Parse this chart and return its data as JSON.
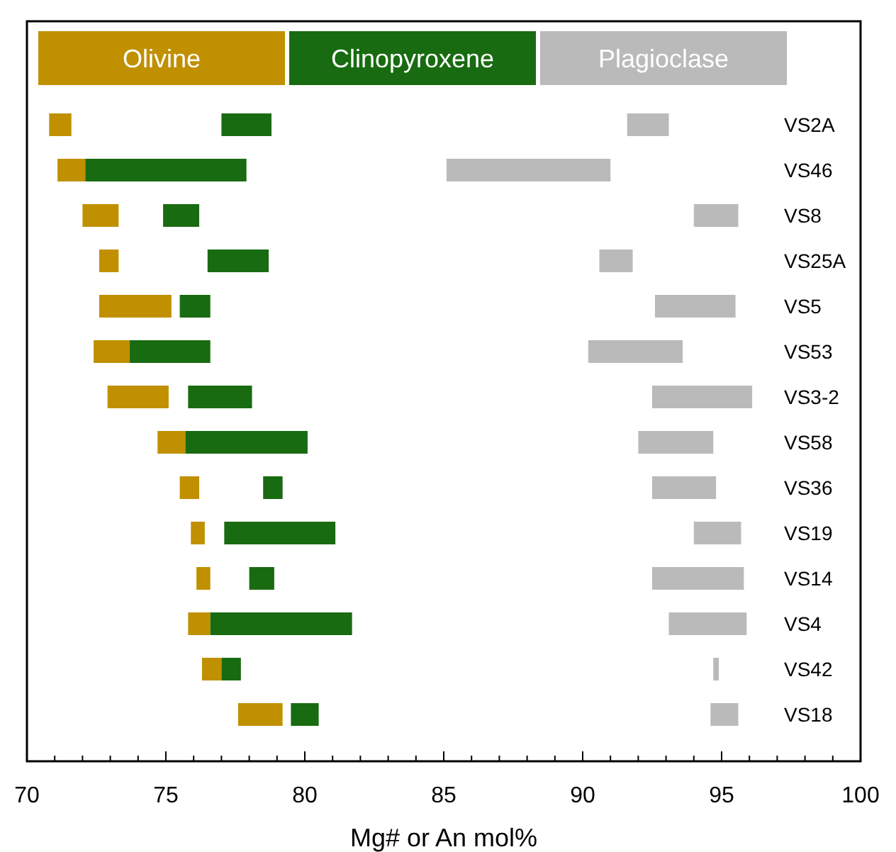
{
  "chart_data": {
    "type": "bar",
    "orientation": "horizontal",
    "xlabel": "Mg# or An mol%",
    "categories": [
      "VS2A",
      "VS46",
      "VS8",
      "VS25A",
      "VS5",
      "VS53",
      "VS3-2",
      "VS58",
      "VS36",
      "VS19",
      "VS14",
      "VS4",
      "VS42",
      "VS18"
    ],
    "series": [
      {
        "name": "Olivine",
        "color": "#c09000",
        "base": [
          70.8,
          71.1,
          72.0,
          72.6,
          72.6,
          72.4,
          72.9,
          74.7,
          75.5,
          75.9,
          76.1,
          75.8,
          76.3,
          77.6
        ],
        "values": [
          0.8,
          1.0,
          1.3,
          0.7,
          2.6,
          1.3,
          2.2,
          1.0,
          0.7,
          0.5,
          0.5,
          0.8,
          0.7,
          1.6
        ]
      },
      {
        "name": "Clinopyroxene",
        "color": "#186b10",
        "base": [
          77.0,
          72.1,
          74.9,
          76.5,
          75.5,
          73.7,
          75.8,
          75.7,
          78.5,
          77.1,
          78.0,
          76.6,
          77.0,
          79.5
        ],
        "values": [
          1.8,
          5.8,
          1.3,
          2.2,
          1.1,
          2.9,
          2.3,
          4.4,
          0.7,
          4.0,
          0.9,
          5.1,
          0.7,
          1.0
        ]
      },
      {
        "name": "Plagioclase",
        "color": "#bababa",
        "base": [
          91.6,
          85.1,
          94.0,
          90.6,
          92.6,
          90.2,
          92.5,
          92.0,
          92.5,
          94.0,
          92.5,
          93.1,
          94.7,
          94.6
        ],
        "values": [
          1.5,
          5.9,
          1.6,
          1.2,
          2.9,
          3.4,
          3.6,
          2.7,
          2.3,
          1.7,
          3.3,
          2.8,
          0.2,
          1.0
        ]
      }
    ],
    "xlim": [
      70,
      100
    ],
    "xticks": [
      70,
      {
        "value": 71,
        "label": null
      },
      {
        "value": 72,
        "label": null
      },
      {
        "value": 73,
        "label": null
      },
      {
        "value": 74,
        "label": null
      },
      75,
      {
        "value": 76,
        "label": null
      },
      {
        "value": 77,
        "label": null
      },
      {
        "value": 78,
        "label": null
      },
      {
        "value": 79,
        "label": null
      },
      80,
      {
        "value": 81,
        "label": null
      },
      {
        "value": 82,
        "label": null
      },
      {
        "value": 83,
        "label": null
      },
      {
        "value": 84,
        "label": null
      },
      85,
      {
        "value": 86,
        "label": null
      },
      {
        "value": 87,
        "label": null
      },
      {
        "value": 88,
        "label": null
      },
      {
        "value": 89,
        "label": null
      },
      90,
      {
        "value": 91,
        "label": null
      },
      {
        "value": 92,
        "label": null
      },
      {
        "value": 93,
        "label": null
      },
      {
        "value": 94,
        "label": null
      },
      95,
      {
        "value": 96,
        "label": null
      },
      {
        "value": 97,
        "label": null
      },
      {
        "value": 98,
        "label": null
      },
      {
        "value": 99,
        "label": null
      },
      100
    ],
    "legend": "top",
    "grid": false
  }
}
